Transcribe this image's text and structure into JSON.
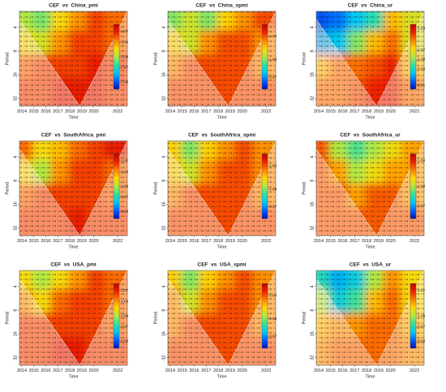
{
  "chart_data": [
    {
      "type": "heatmap",
      "title": "CEF  vs  China_pmi",
      "xlabel": "Time",
      "ylabel": "Period",
      "xlim": [
        2013.8,
        2022.8
      ],
      "xticks": [
        2014,
        2015,
        2016,
        2017,
        2018,
        2019,
        2020,
        2022
      ],
      "ylim": [
        2.5,
        40
      ],
      "yticks": [
        4,
        8,
        16,
        32
      ],
      "y_log": true,
      "y_inverted": true,
      "zlim": [
        0.91,
        1.09
      ],
      "zticks": [
        {
          "value": 0.93,
          "label": "0.93"
        },
        {
          "value": 0.97,
          "label": "0.97"
        },
        {
          "value": 1,
          "label": "1.00"
        },
        {
          "value": 1.04,
          "label": "1.04"
        },
        {
          "value": 1.07,
          "label": "1.07"
        }
      ],
      "z": [
        [
          1.0,
          0.99,
          1.02,
          1.04,
          1.06,
          1.05
        ],
        [
          1.02,
          1.01,
          1.04,
          1.06,
          1.06,
          1.05
        ],
        [
          1.05,
          1.06,
          1.06,
          1.06,
          1.07,
          1.06
        ],
        [
          1.06,
          1.06,
          1.07,
          1.07,
          1.07,
          1.06
        ]
      ]
    },
    {
      "type": "heatmap",
      "title": "CEF  vs  China_spmi",
      "xlabel": "Time",
      "ylabel": "Period",
      "xlim": [
        2013.8,
        2022.8
      ],
      "xticks": [
        2014,
        2015,
        2016,
        2017,
        2018,
        2019,
        2020,
        2022
      ],
      "ylim": [
        2.5,
        40
      ],
      "yticks": [
        4,
        8,
        16,
        32
      ],
      "y_log": true,
      "y_inverted": true,
      "zlim": [
        0.95,
        1.06
      ],
      "zticks": [
        {
          "value": 0.97,
          "label": "0.97"
        },
        {
          "value": 1,
          "label": "1.00"
        },
        {
          "value": 1.04,
          "label": "1.04"
        }
      ],
      "z": [
        [
          1.0,
          1.01,
          1.0,
          1.02,
          1.03,
          1.04
        ],
        [
          1.02,
          1.01,
          1.03,
          1.04,
          1.04,
          1.03
        ],
        [
          1.03,
          1.04,
          1.04,
          1.04,
          1.04,
          1.03
        ],
        [
          1.04,
          1.04,
          1.04,
          1.04,
          1.04,
          1.04
        ]
      ]
    },
    {
      "type": "heatmap",
      "title": "CEF  vs  China_ur",
      "xlabel": "Time",
      "ylabel": "Period",
      "xlim": [
        2013.8,
        2022.8
      ],
      "xticks": [
        2014,
        2015,
        2016,
        2017,
        2018,
        2019,
        2020,
        2022
      ],
      "ylim": [
        2.5,
        40
      ],
      "yticks": [
        4,
        8,
        16,
        32
      ],
      "y_log": true,
      "y_inverted": true,
      "zlim": [
        0.78,
        1.26
      ],
      "zticks": [
        {
          "value": 0.81,
          "label": "0.81"
        },
        {
          "value": 0.93,
          "label": "0.93"
        },
        {
          "value": 1,
          "label": "1.00"
        },
        {
          "value": 1.07,
          "label": "1.07"
        },
        {
          "value": 1.23,
          "label": "1.23"
        }
      ],
      "z": [
        [
          0.83,
          0.85,
          0.9,
          0.95,
          1.1,
          1.05
        ],
        [
          0.88,
          0.9,
          1.0,
          1.1,
          1.15,
          1.05
        ],
        [
          1.1,
          1.15,
          1.15,
          1.17,
          1.2,
          1.1
        ],
        [
          1.15,
          1.15,
          1.17,
          1.2,
          1.2,
          1.15
        ]
      ]
    },
    {
      "type": "heatmap",
      "title": "CEF  vs  SouthAfrica_pmi",
      "xlabel": "Time",
      "ylabel": "Period",
      "xlim": [
        2013.8,
        2022.8
      ],
      "xticks": [
        2014,
        2015,
        2016,
        2017,
        2018,
        2019,
        2020,
        2022
      ],
      "ylim": [
        2.5,
        40
      ],
      "yticks": [
        4,
        8,
        16,
        32
      ],
      "y_log": true,
      "y_inverted": true,
      "zlim": [
        0.91,
        1.09
      ],
      "zticks": [
        {
          "value": 0.93,
          "label": "0.93"
        },
        {
          "value": 0.97,
          "label": "0.97"
        },
        {
          "value": 1,
          "label": "1.00"
        },
        {
          "value": 1.04,
          "label": "1.04"
        },
        {
          "value": 1.07,
          "label": "1.07"
        }
      ],
      "z": [
        [
          1.05,
          1.02,
          1.03,
          1.05,
          1.06,
          1.07
        ],
        [
          1.02,
          1.0,
          1.04,
          1.06,
          1.06,
          1.05
        ],
        [
          1.05,
          1.06,
          1.06,
          1.06,
          1.06,
          1.05
        ],
        [
          1.06,
          1.06,
          1.06,
          1.07,
          1.06,
          1.06
        ]
      ]
    },
    {
      "type": "heatmap",
      "title": "CEF  vs  SouthAfrica_spmi",
      "xlabel": "Time",
      "ylabel": "Period",
      "xlim": [
        2013.8,
        2022.8
      ],
      "xticks": [
        2014,
        2015,
        2016,
        2017,
        2018,
        2019,
        2020,
        2022
      ],
      "ylim": [
        2.5,
        40
      ],
      "yticks": [
        4,
        8,
        16,
        32
      ],
      "y_log": true,
      "y_inverted": true,
      "zlim": [
        0.95,
        1.06
      ],
      "zticks": [
        {
          "value": 0.97,
          "label": "0.97"
        },
        {
          "value": 1,
          "label": "1.00"
        },
        {
          "value": 1.04,
          "label": "1.04"
        }
      ],
      "z": [
        [
          1.02,
          1.0,
          1.02,
          1.03,
          1.04,
          1.03
        ],
        [
          1.02,
          1.01,
          1.03,
          1.04,
          1.04,
          1.03
        ],
        [
          1.03,
          1.04,
          1.04,
          1.04,
          1.04,
          1.03
        ],
        [
          1.04,
          1.04,
          1.04,
          1.04,
          1.04,
          1.04
        ]
      ]
    },
    {
      "type": "heatmap",
      "title": "CEF  vs  SouthAfrica_ur",
      "xlabel": "Time",
      "ylabel": "Period",
      "xlim": [
        2013.8,
        2022.8
      ],
      "xticks": [
        2014,
        2015,
        2016,
        2017,
        2018,
        2019,
        2020,
        2022
      ],
      "ylim": [
        2.5,
        40
      ],
      "yticks": [
        4,
        8,
        16,
        32
      ],
      "y_log": true,
      "y_inverted": true,
      "zlim": [
        0.95,
        1.05
      ],
      "zticks": [
        {
          "value": 0.97,
          "label": "0.97"
        },
        {
          "value": 1,
          "label": "1.00"
        },
        {
          "value": 1.04,
          "label": "1.04"
        }
      ],
      "z": [
        [
          1.03,
          1.0,
          0.99,
          1.0,
          1.01,
          1.02
        ],
        [
          1.03,
          1.02,
          1.0,
          1.01,
          1.02,
          1.02
        ],
        [
          1.03,
          1.03,
          1.02,
          1.03,
          1.03,
          1.02
        ],
        [
          1.03,
          1.03,
          1.03,
          1.03,
          1.03,
          1.03
        ]
      ]
    },
    {
      "type": "heatmap",
      "title": "CEF  vs  USA_pmi",
      "xlabel": "Time",
      "ylabel": "Period",
      "xlim": [
        2013.8,
        2022.8
      ],
      "xticks": [
        2014,
        2015,
        2016,
        2017,
        2018,
        2019,
        2020,
        2022
      ],
      "ylim": [
        2.5,
        40
      ],
      "yticks": [
        4,
        8,
        16,
        32
      ],
      "y_log": true,
      "y_inverted": true,
      "zlim": [
        0.91,
        1.09
      ],
      "zticks": [
        {
          "value": 0.93,
          "label": "0.93"
        },
        {
          "value": 0.97,
          "label": "0.97"
        },
        {
          "value": 1,
          "label": "1.00"
        },
        {
          "value": 1.04,
          "label": "1.04"
        },
        {
          "value": 1.07,
          "label": "1.07"
        }
      ],
      "z": [
        [
          1.02,
          1.0,
          1.02,
          1.04,
          1.06,
          1.05
        ],
        [
          1.04,
          1.02,
          1.05,
          1.06,
          1.06,
          1.05
        ],
        [
          1.06,
          1.06,
          1.06,
          1.06,
          1.06,
          1.05
        ],
        [
          1.06,
          1.06,
          1.07,
          1.07,
          1.06,
          1.06
        ]
      ]
    },
    {
      "type": "heatmap",
      "title": "CEF  vs  USA_spmi",
      "xlabel": "Time",
      "ylabel": "Period",
      "xlim": [
        2013.8,
        2022.8
      ],
      "xticks": [
        2014,
        2015,
        2016,
        2017,
        2018,
        2019,
        2020,
        2022
      ],
      "ylim": [
        2.5,
        40
      ],
      "yticks": [
        4,
        8,
        16,
        32
      ],
      "y_log": true,
      "y_inverted": true,
      "zlim": [
        0.95,
        1.06
      ],
      "zticks": [
        {
          "value": 0.97,
          "label": "0.97"
        },
        {
          "value": 1,
          "label": "1.00"
        },
        {
          "value": 1.04,
          "label": "1.04"
        }
      ],
      "z": [
        [
          1.02,
          1.0,
          1.02,
          1.03,
          1.04,
          1.03
        ],
        [
          1.03,
          1.01,
          1.03,
          1.04,
          1.04,
          1.03
        ],
        [
          1.03,
          1.04,
          1.04,
          1.04,
          1.04,
          1.03
        ],
        [
          1.04,
          1.04,
          1.04,
          1.04,
          1.04,
          1.04
        ]
      ]
    },
    {
      "type": "heatmap",
      "title": "CEF  vs  USA_ur",
      "xlabel": "Time",
      "ylabel": "Period",
      "xlim": [
        2013.8,
        2022.8
      ],
      "xticks": [
        2014,
        2015,
        2016,
        2017,
        2018,
        2019,
        2020,
        2022
      ],
      "ylim": [
        2.5,
        40
      ],
      "yticks": [
        4,
        8,
        16,
        32
      ],
      "y_log": true,
      "y_inverted": true,
      "zlim": [
        0.91,
        1.09
      ],
      "zticks": [
        {
          "value": 0.93,
          "label": "0.93"
        },
        {
          "value": 0.97,
          "label": "0.97"
        },
        {
          "value": 1,
          "label": "1.00"
        },
        {
          "value": 1.07,
          "label": "1.07"
        }
      ],
      "z": [
        [
          0.97,
          0.95,
          0.96,
          1.0,
          1.04,
          1.02
        ],
        [
          1.0,
          0.96,
          0.98,
          1.03,
          1.05,
          1.02
        ],
        [
          1.03,
          1.04,
          1.04,
          1.05,
          1.05,
          1.03
        ],
        [
          1.04,
          1.05,
          1.05,
          1.05,
          1.05,
          1.04
        ]
      ]
    }
  ]
}
